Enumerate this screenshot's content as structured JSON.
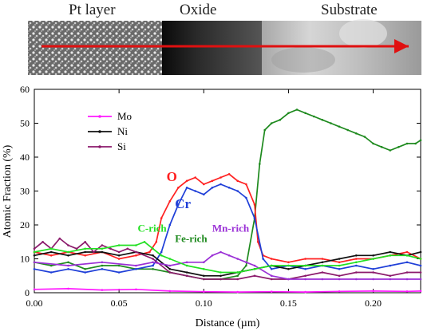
{
  "image_strip": {
    "labels": [
      "Pt layer",
      "Oxide",
      "Substrate"
    ]
  },
  "chart_data": {
    "type": "line",
    "xlabel": "Distance (µm)",
    "ylabel": "Atomic Fraction (%)",
    "xlim": [
      0.0,
      0.228
    ],
    "ylim": [
      0,
      60
    ],
    "x_ticks": [
      "0.00",
      "0.05",
      "0.10",
      "0.15",
      "0.20"
    ],
    "y_ticks": [
      "0",
      "10",
      "20",
      "30",
      "40",
      "50",
      "60"
    ],
    "grid": false,
    "legend": {
      "placement": "upper-left",
      "entries": [
        "Mo",
        "Ni",
        "Si"
      ]
    },
    "series": [
      {
        "key": "Fe",
        "color": "#1e8a1e",
        "x": [
          0,
          0.01,
          0.02,
          0.03,
          0.04,
          0.05,
          0.06,
          0.07,
          0.08,
          0.09,
          0.1,
          0.11,
          0.12,
          0.125,
          0.13,
          0.133,
          0.136,
          0.14,
          0.145,
          0.15,
          0.155,
          0.16,
          0.165,
          0.17,
          0.175,
          0.18,
          0.185,
          0.19,
          0.195,
          0.2,
          0.205,
          0.21,
          0.215,
          0.22,
          0.225,
          0.228
        ],
        "y": [
          9,
          8,
          9,
          7,
          8,
          8,
          7,
          7,
          6,
          5,
          4,
          4,
          5,
          8,
          22,
          38,
          48,
          50,
          51,
          53,
          54,
          53,
          52,
          51,
          50,
          49,
          48,
          47,
          46,
          44,
          43,
          42,
          43,
          44,
          44,
          45
        ]
      },
      {
        "key": "O",
        "color": "#ff2020",
        "x": [
          0,
          0.01,
          0.02,
          0.03,
          0.04,
          0.05,
          0.06,
          0.068,
          0.072,
          0.075,
          0.08,
          0.085,
          0.09,
          0.095,
          0.1,
          0.105,
          0.11,
          0.115,
          0.12,
          0.125,
          0.13,
          0.132,
          0.135,
          0.14,
          0.15,
          0.16,
          0.17,
          0.18,
          0.19,
          0.2,
          0.21,
          0.22,
          0.228
        ],
        "y": [
          12,
          11,
          12,
          11,
          12,
          10,
          11,
          12,
          15,
          22,
          27,
          31,
          33,
          34,
          32,
          33,
          34,
          35,
          33,
          32,
          26,
          15,
          11,
          10,
          9,
          10,
          10,
          9,
          10,
          10,
          11,
          12,
          10
        ]
      },
      {
        "key": "Cr",
        "color": "#1f3fd8",
        "x": [
          0,
          0.01,
          0.02,
          0.03,
          0.04,
          0.05,
          0.06,
          0.07,
          0.075,
          0.08,
          0.085,
          0.09,
          0.095,
          0.1,
          0.105,
          0.11,
          0.115,
          0.12,
          0.125,
          0.13,
          0.135,
          0.14,
          0.15,
          0.16,
          0.17,
          0.18,
          0.19,
          0.2,
          0.21,
          0.22,
          0.228
        ],
        "y": [
          7,
          6,
          7,
          6,
          7,
          6,
          7,
          8,
          12,
          20,
          26,
          31,
          30,
          29,
          31,
          32,
          31,
          30,
          28,
          22,
          10,
          7,
          8,
          7,
          8,
          7,
          8,
          7,
          8,
          9,
          8
        ]
      },
      {
        "key": "Ni",
        "color": "#111111",
        "x": [
          0,
          0.01,
          0.02,
          0.03,
          0.04,
          0.05,
          0.06,
          0.07,
          0.08,
          0.09,
          0.1,
          0.11,
          0.12,
          0.13,
          0.14,
          0.15,
          0.16,
          0.17,
          0.18,
          0.19,
          0.2,
          0.21,
          0.22,
          0.228
        ],
        "y": [
          11,
          12,
          11,
          12,
          12,
          11,
          12,
          11,
          7,
          6,
          5,
          5,
          6,
          7,
          8,
          7,
          8,
          9,
          10,
          11,
          11,
          12,
          11,
          12
        ]
      },
      {
        "key": "Si",
        "color": "#8b1a6b",
        "x": [
          0,
          0.005,
          0.01,
          0.015,
          0.02,
          0.025,
          0.03,
          0.035,
          0.04,
          0.045,
          0.05,
          0.055,
          0.06,
          0.07,
          0.08,
          0.09,
          0.1,
          0.11,
          0.12,
          0.13,
          0.14,
          0.15,
          0.16,
          0.17,
          0.18,
          0.19,
          0.2,
          0.21,
          0.22,
          0.228
        ],
        "y": [
          13,
          15,
          13,
          16,
          14,
          13,
          15,
          12,
          14,
          13,
          12,
          13,
          12,
          10,
          6,
          5,
          4,
          4,
          4,
          5,
          4,
          4,
          5,
          6,
          5,
          6,
          6,
          5,
          6,
          6
        ]
      },
      {
        "key": "Mn",
        "color": "#9a2fd6",
        "x": [
          0,
          0.02,
          0.04,
          0.06,
          0.07,
          0.08,
          0.09,
          0.1,
          0.105,
          0.11,
          0.115,
          0.12,
          0.125,
          0.13,
          0.14,
          0.15,
          0.16,
          0.17,
          0.18,
          0.19,
          0.2,
          0.21,
          0.22,
          0.228
        ],
        "y": [
          9,
          8,
          9,
          8,
          9,
          8,
          9,
          9,
          11,
          12,
          11,
          10,
          9,
          8,
          5,
          4,
          4,
          4,
          4,
          4,
          4,
          4,
          4,
          4
        ]
      },
      {
        "key": "C",
        "color": "#22e022",
        "x": [
          0,
          0.01,
          0.02,
          0.03,
          0.04,
          0.05,
          0.06,
          0.065,
          0.07,
          0.075,
          0.08,
          0.09,
          0.1,
          0.11,
          0.12,
          0.13,
          0.14,
          0.15,
          0.16,
          0.17,
          0.18,
          0.19,
          0.2,
          0.21,
          0.22,
          0.228
        ],
        "y": [
          12,
          13,
          12,
          13,
          13,
          14,
          14,
          15,
          13,
          11,
          10,
          8,
          7,
          6,
          6,
          7,
          8,
          8,
          8,
          8,
          8,
          9,
          10,
          11,
          11,
          10
        ]
      },
      {
        "key": "Mo",
        "color": "#ff1aff",
        "x": [
          0,
          0.02,
          0.04,
          0.06,
          0.08,
          0.1,
          0.12,
          0.14,
          0.16,
          0.18,
          0.2,
          0.22,
          0.228
        ],
        "y": [
          1,
          1.2,
          0.8,
          1,
          0.5,
          0.3,
          0.2,
          0.3,
          0.2,
          0.4,
          0.5,
          0.4,
          0.5
        ]
      }
    ],
    "annotations": [
      {
        "text": "O",
        "color": "#ff2020",
        "x": 0.078,
        "y": 33
      },
      {
        "text": "Cr",
        "color": "#1f3fd8",
        "x": 0.083,
        "y": 25
      },
      {
        "text": "C-rich",
        "color": "#22e022",
        "x": 0.061,
        "y": 18
      },
      {
        "text": "Fe-rich",
        "color": "#1e8a1e",
        "x": 0.083,
        "y": 15
      },
      {
        "text": "Mn-rich",
        "color": "#9a2fd6",
        "x": 0.105,
        "y": 18
      }
    ]
  }
}
